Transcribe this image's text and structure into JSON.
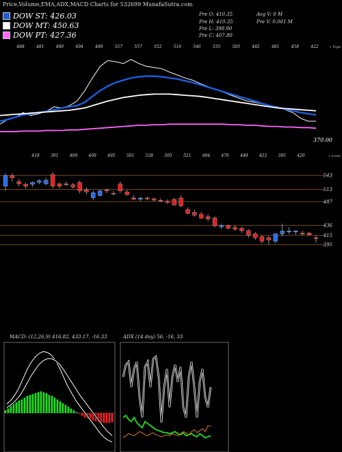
{
  "header": {
    "title": "Price,Volume,EMA,ADX,MACD Charts for 532699 MunafaSutra.com"
  },
  "legend": [
    {
      "label": "DOW ST: 426.03",
      "color": "#1e5bd6"
    },
    {
      "label": "DOW MT: 450.63",
      "color": "#ffffff"
    },
    {
      "label": "DOW PT: 427.36",
      "color": "#ff66ff"
    }
  ],
  "stats": {
    "pre_o": "Pre  O: 410.35",
    "pre_h": "Pre  H: 410.35",
    "pre_l": "Pre  L: 398.90",
    "pre_c": "Pre  C: 407.80",
    "avg_v": "Avg V: 0  M",
    "pre_v": "Pre  V: 0.001 M"
  },
  "chart_data": [
    {
      "type": "line",
      "panel": "price-ema",
      "corner_labels": {
        "top_right": "« Tops",
        "bottom_right": "« Lows"
      },
      "top_labels": [
        "488",
        "481",
        "490",
        "494",
        "499",
        "557",
        "557",
        "552",
        "516",
        "546",
        "535",
        "505",
        "482",
        "481",
        "458",
        "422"
      ],
      "bottom_labels": [
        "418",
        "391",
        "409",
        "409",
        "495",
        "501",
        "528",
        "505",
        "521",
        "494",
        "476",
        "449",
        "422",
        "395",
        "420"
      ],
      "last_price_label": "370.00",
      "series": [
        {
          "name": "price",
          "color": "#ffffff",
          "values": [
            440,
            448,
            452,
            460,
            455,
            458,
            462,
            470,
            468,
            472,
            480,
            498,
            520,
            540,
            550,
            548,
            545,
            552,
            545,
            540,
            538,
            536,
            530,
            525,
            520,
            516,
            510,
            505,
            500,
            495,
            490,
            485,
            480,
            478,
            475,
            472,
            470,
            465,
            460,
            450,
            445,
            445
          ]
        },
        {
          "name": "DOW ST",
          "color": "#1e5bd6",
          "values": [
            445,
            448,
            452,
            456,
            458,
            460,
            462,
            465,
            468,
            470,
            472,
            478,
            488,
            498,
            506,
            512,
            516,
            520,
            522,
            523,
            523,
            522,
            520,
            518,
            515,
            512,
            508,
            504,
            500,
            496,
            492,
            488,
            484,
            480,
            476,
            472,
            469,
            466,
            463,
            460,
            458,
            456
          ]
        },
        {
          "name": "DOW MT",
          "color": "#ffffff",
          "values": [
            455,
            456,
            457,
            458,
            459,
            460,
            461,
            462,
            463,
            464,
            466,
            468,
            472,
            476,
            480,
            483,
            486,
            488,
            490,
            491,
            492,
            492,
            492,
            491,
            490,
            489,
            488,
            486,
            484,
            482,
            480,
            478,
            476,
            474,
            472,
            470,
            468,
            467,
            466,
            465,
            464,
            463
          ]
        },
        {
          "name": "DOW PT",
          "color": "#ff66ff",
          "values": [
            427,
            427,
            427,
            428,
            428,
            428,
            429,
            429,
            429,
            430,
            430,
            431,
            432,
            433,
            434,
            435,
            436,
            437,
            438,
            438,
            439,
            439,
            440,
            440,
            440,
            440,
            440,
            440,
            440,
            440,
            439,
            439,
            438,
            438,
            437,
            436,
            436,
            435,
            435,
            434,
            434,
            433
          ]
        }
      ]
    },
    {
      "type": "bar",
      "subtype": "candlestick",
      "panel": "candles",
      "level_labels": [
        "543",
        "513",
        "487",
        "436",
        "415",
        "395"
      ],
      "series": [
        {
          "name": "candles",
          "values": [
            {
              "o": 520,
              "h": 548,
              "l": 510,
              "c": 543,
              "color": "blue"
            },
            {
              "o": 543,
              "h": 548,
              "l": 530,
              "c": 538,
              "color": "red"
            },
            {
              "o": 530,
              "h": 535,
              "l": 520,
              "c": 525,
              "color": "red"
            },
            {
              "o": 520,
              "h": 528,
              "l": 515,
              "c": 524,
              "color": "red"
            },
            {
              "o": 524,
              "h": 530,
              "l": 518,
              "c": 528,
              "color": "blue"
            },
            {
              "o": 528,
              "h": 535,
              "l": 524,
              "c": 532,
              "color": "blue"
            },
            {
              "o": 533,
              "h": 538,
              "l": 522,
              "c": 525,
              "color": "blue"
            },
            {
              "o": 545,
              "h": 550,
              "l": 515,
              "c": 520,
              "color": "red"
            },
            {
              "o": 520,
              "h": 528,
              "l": 515,
              "c": 525,
              "color": "red"
            },
            {
              "o": 525,
              "h": 530,
              "l": 520,
              "c": 523,
              "color": "red"
            },
            {
              "o": 523,
              "h": 527,
              "l": 515,
              "c": 518,
              "color": "red"
            },
            {
              "o": 528,
              "h": 532,
              "l": 505,
              "c": 510,
              "color": "red"
            },
            {
              "o": 512,
              "h": 517,
              "l": 503,
              "c": 508,
              "color": "red"
            },
            {
              "o": 495,
              "h": 510,
              "l": 490,
              "c": 506,
              "color": "blue"
            },
            {
              "o": 500,
              "h": 512,
              "l": 498,
              "c": 510,
              "color": "blue"
            },
            {
              "o": 510,
              "h": 515,
              "l": 505,
              "c": 512,
              "color": "red"
            },
            {
              "o": 505,
              "h": 510,
              "l": 500,
              "c": 504,
              "color": "red"
            },
            {
              "o": 525,
              "h": 530,
              "l": 505,
              "c": 510,
              "color": "red"
            },
            {
              "o": 508,
              "h": 512,
              "l": 500,
              "c": 502,
              "color": "red"
            },
            {
              "o": 495,
              "h": 500,
              "l": 490,
              "c": 492,
              "color": "red"
            },
            {
              "o": 492,
              "h": 497,
              "l": 488,
              "c": 495,
              "color": "blue"
            },
            {
              "o": 495,
              "h": 498,
              "l": 490,
              "c": 493,
              "color": "red"
            },
            {
              "o": 493,
              "h": 496,
              "l": 488,
              "c": 490,
              "color": "red"
            },
            {
              "o": 490,
              "h": 494,
              "l": 486,
              "c": 488,
              "color": "red"
            },
            {
              "o": 488,
              "h": 492,
              "l": 482,
              "c": 485,
              "color": "red"
            },
            {
              "o": 492,
              "h": 495,
              "l": 478,
              "c": 480,
              "color": "red"
            },
            {
              "o": 495,
              "h": 500,
              "l": 475,
              "c": 478,
              "color": "red"
            },
            {
              "o": 470,
              "h": 475,
              "l": 460,
              "c": 462,
              "color": "red"
            },
            {
              "o": 464,
              "h": 470,
              "l": 455,
              "c": 458,
              "color": "red"
            },
            {
              "o": 460,
              "h": 465,
              "l": 450,
              "c": 452,
              "color": "red"
            },
            {
              "o": 455,
              "h": 460,
              "l": 445,
              "c": 450,
              "color": "red"
            },
            {
              "o": 452,
              "h": 456,
              "l": 432,
              "c": 435,
              "color": "red"
            },
            {
              "o": 433,
              "h": 440,
              "l": 428,
              "c": 436,
              "color": "blue"
            },
            {
              "o": 436,
              "h": 438,
              "l": 428,
              "c": 430,
              "color": "red"
            },
            {
              "o": 432,
              "h": 437,
              "l": 425,
              "c": 428,
              "color": "red"
            },
            {
              "o": 430,
              "h": 433,
              "l": 420,
              "c": 425,
              "color": "red"
            },
            {
              "o": 425,
              "h": 428,
              "l": 410,
              "c": 415,
              "color": "red"
            },
            {
              "o": 418,
              "h": 422,
              "l": 405,
              "c": 410,
              "color": "red"
            },
            {
              "o": 412,
              "h": 415,
              "l": 398,
              "c": 402,
              "color": "red"
            },
            {
              "o": 410,
              "h": 414,
              "l": 395,
              "c": 405,
              "color": "red"
            },
            {
              "o": 402,
              "h": 420,
              "l": 398,
              "c": 418,
              "color": "blue"
            },
            {
              "o": 418,
              "h": 440,
              "l": 412,
              "c": 424,
              "color": "blue"
            },
            {
              "o": 424,
              "h": 432,
              "l": 418,
              "c": 422,
              "color": "blue"
            },
            {
              "o": 422,
              "h": 426,
              "l": 416,
              "c": 424,
              "color": "blue"
            },
            {
              "o": 420,
              "h": 425,
              "l": 415,
              "c": 418,
              "color": "red"
            },
            {
              "o": 420,
              "h": 423,
              "l": 414,
              "c": 416,
              "color": "red"
            },
            {
              "o": 410,
              "h": 415,
              "l": 399,
              "c": 408,
              "color": "red"
            }
          ]
        }
      ]
    },
    {
      "type": "bar",
      "panel": "macd",
      "title": "MACD: (12,26,9) 416.82, 433.17, -16.33",
      "series": [
        {
          "name": "histogram",
          "values": [
            3,
            5,
            8,
            10,
            12,
            14,
            15,
            17,
            19,
            20,
            21,
            22,
            23,
            24,
            23,
            22,
            20,
            19,
            17,
            15,
            13,
            11,
            9,
            7,
            5,
            3,
            1,
            -1,
            -3,
            -5,
            -6,
            -7,
            -8,
            -9,
            -10,
            -10,
            -11,
            -11,
            -11,
            -10
          ]
        },
        {
          "name": "macd",
          "values": [
            10,
            14,
            20,
            28,
            38,
            48,
            56,
            62,
            66,
            68,
            67,
            64,
            58,
            50,
            40,
            30,
            22,
            14,
            8,
            2,
            -4,
            -10,
            -16,
            -22,
            -27,
            -30,
            -32
          ]
        },
        {
          "name": "signal",
          "values": [
            6,
            9,
            13,
            18,
            25,
            33,
            41,
            48,
            54,
            58,
            60,
            60,
            58,
            54,
            48,
            41,
            34,
            27,
            20,
            14,
            8,
            2,
            -4,
            -10,
            -16,
            -21,
            -25
          ]
        }
      ]
    },
    {
      "type": "line",
      "panel": "adx",
      "title": "ADX (14 day) 56, -16, 33",
      "series": [
        {
          "name": "dx",
          "values": [
            70,
            82,
            85,
            60,
            78,
            85,
            50,
            30,
            80,
            85,
            60,
            88,
            90,
            70,
            25,
            60,
            78,
            40,
            70,
            82,
            65,
            80,
            40,
            30,
            70,
            85,
            60,
            30,
            65,
            78,
            50,
            40,
            60
          ]
        },
        {
          "name": "plus-di",
          "values": [
            30,
            32,
            28,
            26,
            30,
            25,
            22,
            20,
            26,
            24,
            22,
            20,
            18,
            17,
            16,
            15,
            15,
            14,
            15,
            16,
            14,
            13,
            15,
            12,
            13,
            14,
            12,
            11,
            14,
            12,
            10,
            11,
            12
          ]
        },
        {
          "name": "minus-di",
          "values": [
            10,
            12,
            14,
            13,
            12,
            14,
            16,
            15,
            13,
            12,
            14,
            15,
            13,
            12,
            11,
            12,
            13,
            12,
            14,
            13,
            12,
            14,
            16,
            15,
            13,
            16,
            18,
            15,
            17,
            19,
            16,
            22,
            21
          ]
        }
      ]
    }
  ]
}
